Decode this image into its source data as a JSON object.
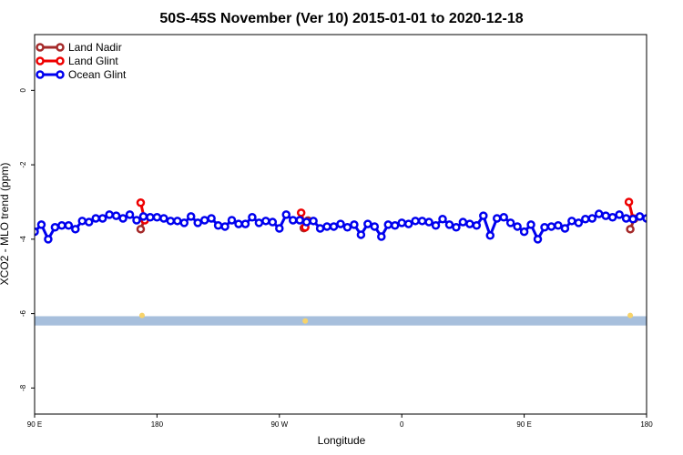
{
  "chart_data": {
    "type": "line",
    "title": "50S-45S November (Ver 10)   2015-01-01 to 2020-12-18",
    "xlabel": "Longitude",
    "ylabel": "XCO2 - MLO trend (ppm)",
    "xlim": [
      90,
      540
    ],
    "ylim": [
      -8.7,
      1.5
    ],
    "xticks": [
      {
        "value": 90,
        "label": "90 E"
      },
      {
        "value": 180,
        "label": "180"
      },
      {
        "value": 270,
        "label": "90 W"
      },
      {
        "value": 360,
        "label": "0"
      },
      {
        "value": 450,
        "label": "90 E"
      },
      {
        "value": 540,
        "label": "180"
      }
    ],
    "yticks": [
      0,
      -2,
      -4,
      -6,
      -8
    ],
    "legend": "upper left",
    "band": {
      "range": [
        -6.32,
        -6.07
      ],
      "color": "#a7bfdc"
    },
    "markers": {
      "x": [
        169,
        289,
        528
      ],
      "values": [
        -6.05,
        -6.2,
        -6.05
      ],
      "color": "#f7d36a"
    },
    "series": [
      {
        "name": "Land Nadir",
        "color": "#a52a2a",
        "x": [
          168,
          171,
          176,
          288,
          291,
          296,
          528,
          531
        ],
        "values": [
          -3.73,
          -3.45,
          null,
          -3.7,
          -3.5,
          null,
          -3.73,
          -3.45
        ]
      },
      {
        "name": "Land Glint",
        "color": "#ee0000",
        "x": [
          168,
          171,
          176,
          286,
          289,
          294,
          527,
          530
        ],
        "values": [
          -3.02,
          -3.49,
          null,
          -3.29,
          -3.68,
          null,
          -3.0,
          -3.44
        ]
      },
      {
        "name": "Ocean Glint",
        "color": "#0000ee",
        "x": [
          90,
          95,
          100,
          105,
          110,
          115,
          120,
          125,
          130,
          135,
          140,
          145,
          150,
          155,
          160,
          165,
          170,
          175,
          180,
          185,
          190,
          195,
          200,
          205,
          210,
          215,
          220,
          225,
          230,
          235,
          240,
          245,
          250,
          255,
          260,
          265,
          270,
          275,
          280,
          285,
          290,
          295,
          300,
          305,
          310,
          315,
          320,
          325,
          330,
          335,
          340,
          345,
          350,
          355,
          360,
          365,
          370,
          375,
          380,
          385,
          390,
          395,
          400,
          405,
          410,
          415,
          420,
          425,
          430,
          435,
          440,
          445,
          450,
          455,
          460,
          465,
          470,
          475,
          480,
          485,
          490,
          495,
          500,
          505,
          510,
          515,
          520,
          525,
          530,
          535,
          540
        ],
        "values": [
          -3.8,
          -3.61,
          -4.0,
          -3.68,
          -3.63,
          -3.63,
          -3.73,
          -3.51,
          -3.54,
          -3.44,
          -3.44,
          -3.34,
          -3.37,
          -3.44,
          -3.34,
          -3.49,
          -3.39,
          -3.41,
          -3.41,
          -3.44,
          -3.51,
          -3.51,
          -3.56,
          -3.39,
          -3.56,
          -3.49,
          -3.44,
          -3.63,
          -3.66,
          -3.49,
          -3.59,
          -3.59,
          -3.41,
          -3.56,
          -3.51,
          -3.54,
          -3.71,
          -3.34,
          -3.49,
          -3.49,
          -3.54,
          -3.51,
          -3.71,
          -3.66,
          -3.66,
          -3.59,
          -3.68,
          -3.61,
          -3.88,
          -3.59,
          -3.66,
          -3.93,
          -3.61,
          -3.63,
          -3.56,
          -3.59,
          -3.51,
          -3.51,
          -3.54,
          -3.63,
          -3.46,
          -3.61,
          -3.68,
          -3.54,
          -3.59,
          -3.63,
          -3.37,
          -3.9,
          -3.44,
          -3.41,
          -3.56,
          -3.66,
          -3.8,
          -3.61,
          -4.0,
          -3.68,
          -3.66,
          -3.63,
          -3.71,
          -3.51,
          -3.56,
          -3.46,
          -3.44,
          -3.32,
          -3.37,
          -3.41,
          -3.34,
          -3.44,
          -3.46,
          -3.39,
          -3.44
        ]
      }
    ]
  }
}
